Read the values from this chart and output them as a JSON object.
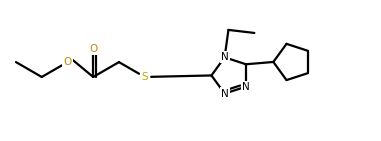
{
  "bg_color": "#ffffff",
  "line_color": "#000000",
  "lw": 1.6,
  "figsize": [
    3.81,
    1.41
  ],
  "dpi": 100,
  "xlim": [
    0,
    10
  ],
  "ylim": [
    0,
    3.7
  ],
  "O_color": "#bb8800",
  "S_color": "#bbaa00",
  "N_color": "#000000",
  "font_size": 7.5
}
